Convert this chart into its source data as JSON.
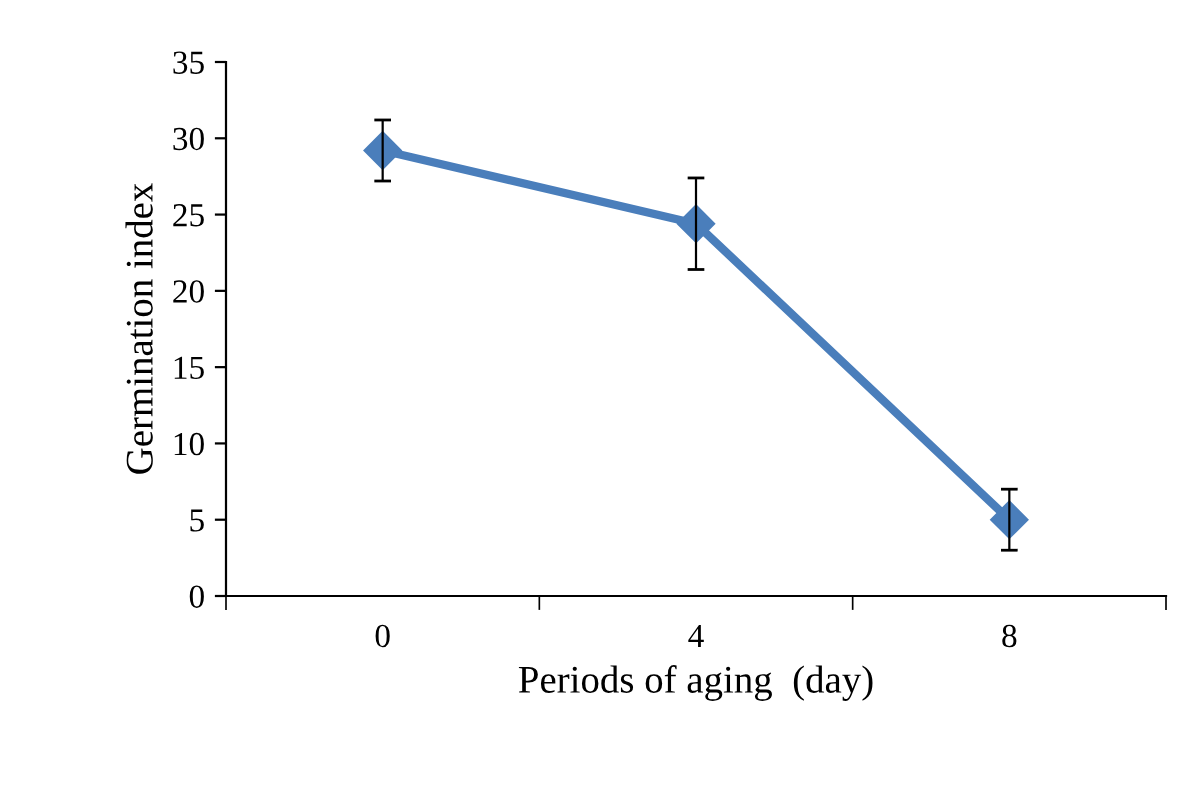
{
  "chart_data": {
    "type": "line",
    "xlabel": "Periods of aging  (day)",
    "ylabel": "Germination index",
    "categories": [
      "0",
      "4",
      "8"
    ],
    "series": [
      {
        "color": "#4a7ebb",
        "values": [
          29.2,
          24.4,
          5.0
        ],
        "errors": [
          2,
          3,
          2
        ]
      }
    ],
    "ylim": [
      0,
      35
    ],
    "yticks": [
      0,
      5,
      10,
      15,
      20,
      25,
      30,
      35
    ],
    "marker": "diamond",
    "line_style": "solid",
    "grid": false,
    "legend": false
  }
}
